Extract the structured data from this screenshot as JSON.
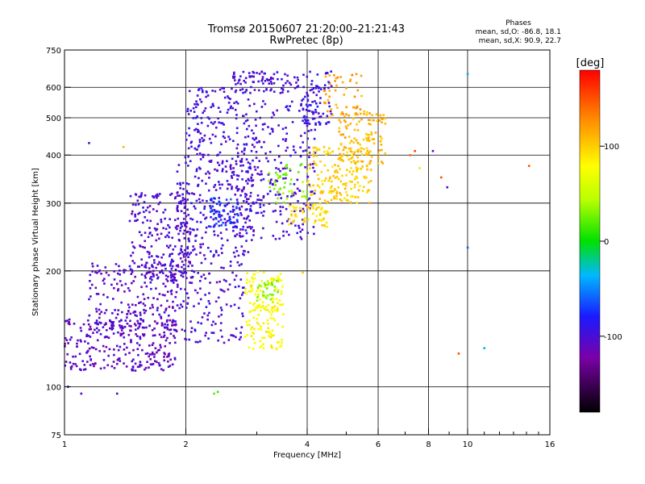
{
  "title": {
    "line1": "Tromsø 20150607 21:20:00–21:21:43",
    "line2": "RwPretec (8p)"
  },
  "stats": {
    "header": "Phases",
    "o_line": "mean, sd,O: -86.8, 18.1",
    "x_line": "mean, sd,X: 90.9, 22.7"
  },
  "colorbar": {
    "unit_label": "[deg]",
    "ticks": [
      {
        "value": 100,
        "label": "100"
      },
      {
        "value": 0,
        "label": "0"
      },
      {
        "value": -100,
        "label": "-100"
      }
    ],
    "range": [
      -180,
      180
    ]
  },
  "chart_data": {
    "type": "scatter",
    "xlabel": "Frequency [MHz]",
    "ylabel": "Stationary phase Virtual Height [km]",
    "xscale": "log",
    "yscale": "log",
    "xlim": [
      1,
      16
    ],
    "ylim": [
      75,
      750
    ],
    "xticks": [
      {
        "value": 1,
        "label": "1"
      },
      {
        "value": 2,
        "label": "2"
      },
      {
        "value": 4,
        "label": "4"
      },
      {
        "value": 6,
        "label": "6"
      },
      {
        "value": 8,
        "label": "8"
      },
      {
        "value": 10,
        "label": "10"
      },
      {
        "value": 16,
        "label": "16"
      }
    ],
    "xgrid": [
      2,
      4,
      6,
      8,
      10
    ],
    "xminor": [
      3,
      5,
      7,
      9,
      11,
      12,
      13,
      14,
      15
    ],
    "yticks": [
      {
        "value": 75,
        "label": "75"
      },
      {
        "value": 100,
        "label": "100"
      },
      {
        "value": 200,
        "label": "200"
      },
      {
        "value": 300,
        "label": "300"
      },
      {
        "value": 400,
        "label": "400"
      },
      {
        "value": 500,
        "label": "500"
      },
      {
        "value": 600,
        "label": "600"
      },
      {
        "value": 750,
        "label": "750"
      }
    ],
    "ygrid": [
      100,
      200,
      300,
      400,
      500,
      600
    ],
    "grid": true,
    "color_by": "phase (deg)",
    "clusters": [
      {
        "x_range": [
          1.0,
          1.9
        ],
        "y_range": [
          110,
          150
        ],
        "phase": -110,
        "density": 260
      },
      {
        "x_range": [
          1.15,
          1.9
        ],
        "y_range": [
          140,
          210
        ],
        "phase": -108,
        "density": 220
      },
      {
        "x_range": [
          1.45,
          2.05
        ],
        "y_range": [
          190,
          320
        ],
        "phase": -105,
        "density": 200
      },
      {
        "x_range": [
          1.8,
          2.8
        ],
        "y_range": [
          130,
          230
        ],
        "phase": -102,
        "density": 170
      },
      {
        "x_range": [
          1.9,
          2.9
        ],
        "y_range": [
          220,
          400
        ],
        "phase": -100,
        "density": 240
      },
      {
        "x_range": [
          2.0,
          2.6
        ],
        "y_range": [
          400,
          600
        ],
        "phase": -98,
        "density": 110
      },
      {
        "x_range": [
          2.3,
          2.7
        ],
        "y_range": [
          260,
          310
        ],
        "phase": -75,
        "density": 60
      },
      {
        "x_range": [
          2.6,
          4.2
        ],
        "y_range": [
          240,
          560
        ],
        "phase": -100,
        "density": 300
      },
      {
        "x_range": [
          2.6,
          3.8
        ],
        "y_range": [
          580,
          660
        ],
        "phase": -102,
        "density": 90
      },
      {
        "x_range": [
          3.9,
          4.6
        ],
        "y_range": [
          480,
          660
        ],
        "phase": -95,
        "density": 80
      },
      {
        "x_range": [
          3.2,
          4.0
        ],
        "y_range": [
          300,
          380
        ],
        "phase": 30,
        "density": 45
      },
      {
        "x_range": [
          3.6,
          4.5
        ],
        "y_range": [
          260,
          300
        ],
        "phase": 95,
        "density": 60
      },
      {
        "x_range": [
          4.0,
          5.8
        ],
        "y_range": [
          300,
          420
        ],
        "phase": 100,
        "density": 170
      },
      {
        "x_range": [
          4.8,
          6.3
        ],
        "y_range": [
          380,
          520
        ],
        "phase": 110,
        "density": 120
      },
      {
        "x_range": [
          4.4,
          5.5
        ],
        "y_range": [
          500,
          650
        ],
        "phase": 120,
        "density": 50
      },
      {
        "x_range": [
          2.8,
          3.5
        ],
        "y_range": [
          125,
          200
        ],
        "phase": 80,
        "density": 160
      },
      {
        "x_range": [
          3.0,
          3.4
        ],
        "y_range": [
          165,
          190
        ],
        "phase": 30,
        "density": 30
      }
    ],
    "outliers": [
      {
        "x": 1.15,
        "y": 430,
        "phase": -105
      },
      {
        "x": 1.4,
        "y": 420,
        "phase": 110
      },
      {
        "x": 2.35,
        "y": 96,
        "phase": 20
      },
      {
        "x": 2.4,
        "y": 97,
        "phase": 15
      },
      {
        "x": 1.02,
        "y": 100,
        "phase": -110
      },
      {
        "x": 1.1,
        "y": 96,
        "phase": -110
      },
      {
        "x": 1.35,
        "y": 96,
        "phase": -105
      },
      {
        "x": 7.2,
        "y": 400,
        "phase": 140
      },
      {
        "x": 7.6,
        "y": 370,
        "phase": 50
      },
      {
        "x": 8.2,
        "y": 410,
        "phase": -110
      },
      {
        "x": 8.6,
        "y": 350,
        "phase": 150
      },
      {
        "x": 8.9,
        "y": 330,
        "phase": -100
      },
      {
        "x": 10.0,
        "y": 650,
        "phase": -40
      },
      {
        "x": 10.0,
        "y": 230,
        "phase": -60
      },
      {
        "x": 9.5,
        "y": 122,
        "phase": 150
      },
      {
        "x": 11.0,
        "y": 126,
        "phase": -40
      },
      {
        "x": 14.2,
        "y": 375,
        "phase": 150
      },
      {
        "x": 7.4,
        "y": 410,
        "phase": 155
      },
      {
        "x": 3.9,
        "y": 198,
        "phase": 100
      }
    ]
  }
}
